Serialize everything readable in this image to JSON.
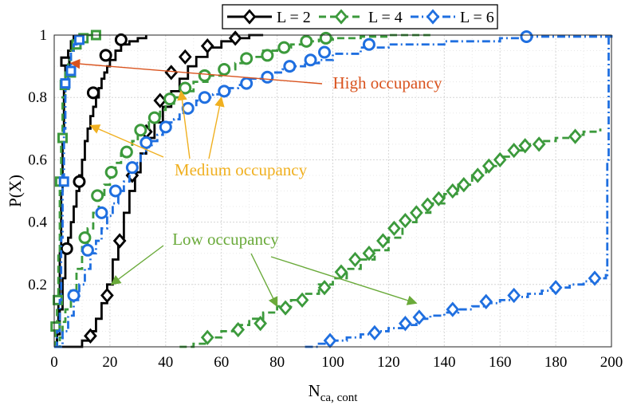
{
  "chart_data": {
    "type": "line",
    "title": "",
    "xlabel": "N",
    "xlabel_sub": "ca, cont",
    "ylabel": "P(X)",
    "xlim": [
      0,
      200
    ],
    "ylim": [
      0,
      1
    ],
    "xticks": [
      0,
      20,
      40,
      60,
      80,
      100,
      120,
      140,
      160,
      180,
      200
    ],
    "yticks": [
      0.2,
      0.4,
      0.6,
      0.8,
      1
    ],
    "ytick_labels": [
      "0.2",
      "0.4",
      "0.6",
      "0.8",
      "1"
    ],
    "grid": true,
    "legend_position": "top",
    "legend": [
      "L = 2",
      "L = 4",
      "L = 6"
    ],
    "colors": {
      "black": "#000000",
      "green": "#3c9a3c",
      "blue": "#1f6fe0",
      "high": "#d9531e",
      "medium": "#f0b020",
      "low": "#6aaa3a"
    },
    "series": [
      {
        "name": "L = 2",
        "group": "high",
        "color": "#000000",
        "dash": "",
        "marker": "square",
        "x": [
          0,
          1,
          1.5,
          2,
          2.5,
          3,
          3.5,
          4,
          5,
          6,
          7
        ],
        "y": [
          0,
          0.06,
          0.15,
          0.3,
          0.5,
          0.68,
          0.82,
          0.91,
          0.95,
          0.98,
          1.0
        ],
        "mx": [
          4
        ],
        "my": [
          0.915
        ]
      },
      {
        "name": "L = 2",
        "group": "medium",
        "color": "#000000",
        "dash": "",
        "marker": "circle",
        "x": [
          0,
          1,
          2,
          3,
          4,
          5,
          6,
          7,
          8,
          9,
          10,
          11,
          12,
          13,
          14,
          15,
          16,
          17,
          18,
          19,
          20,
          22,
          24,
          27,
          30,
          33
        ],
        "y": [
          0,
          0.04,
          0.12,
          0.22,
          0.3,
          0.35,
          0.4,
          0.45,
          0.5,
          0.55,
          0.6,
          0.66,
          0.7,
          0.74,
          0.77,
          0.8,
          0.83,
          0.86,
          0.88,
          0.9,
          0.92,
          0.95,
          0.97,
          0.98,
          0.99,
          1.0
        ],
        "mx": [
          4.5,
          9,
          14,
          18.5,
          24
        ],
        "my": [
          0.315,
          0.53,
          0.815,
          0.935,
          0.985
        ]
      },
      {
        "name": "L = 2",
        "group": "low",
        "color": "#000000",
        "dash": "",
        "marker": "diamond",
        "x": [
          0,
          5,
          10,
          13,
          15,
          17,
          19,
          21,
          23,
          25,
          27,
          29,
          31,
          33,
          36,
          39,
          42,
          45,
          48,
          51,
          55,
          60,
          65,
          70,
          75
        ],
        "y": [
          0,
          0,
          0.02,
          0.05,
          0.09,
          0.14,
          0.2,
          0.28,
          0.35,
          0.43,
          0.5,
          0.56,
          0.62,
          0.67,
          0.72,
          0.77,
          0.82,
          0.86,
          0.9,
          0.93,
          0.96,
          0.98,
          0.99,
          1.0,
          1.0
        ],
        "mx": [
          13,
          19,
          23.5,
          28,
          33,
          38,
          42,
          47,
          55,
          65
        ],
        "my": [
          0.035,
          0.165,
          0.34,
          0.55,
          0.69,
          0.79,
          0.88,
          0.93,
          0.965,
          0.99
        ]
      },
      {
        "name": "L = 4",
        "group": "high",
        "color": "#3c9a3c",
        "dash": "9,5",
        "marker": "square",
        "x": [
          0,
          0.5,
          1,
          1.5,
          2,
          2.5,
          3,
          4,
          5,
          6,
          7,
          8,
          10,
          12,
          15
        ],
        "y": [
          0,
          0.07,
          0.15,
          0.3,
          0.5,
          0.66,
          0.8,
          0.88,
          0.92,
          0.95,
          0.97,
          0.98,
          0.99,
          1.0,
          1.0
        ],
        "mx": [
          0.5,
          1.3,
          2.1,
          3,
          3.8,
          6,
          8,
          10.5,
          15
        ],
        "my": [
          0.065,
          0.15,
          0.53,
          0.67,
          0.84,
          0.88,
          0.97,
          0.99,
          1.0
        ]
      },
      {
        "name": "L = 4",
        "group": "medium",
        "color": "#3c9a3c",
        "dash": "9,5",
        "marker": "circle",
        "x": [
          0,
          2,
          3,
          4,
          6,
          8,
          10,
          12,
          14,
          16,
          18,
          20,
          22,
          24,
          26,
          28,
          30,
          32,
          34,
          36,
          38,
          40,
          43,
          46,
          50,
          55,
          60,
          65,
          70,
          75,
          80,
          85,
          90,
          95,
          100,
          110,
          120,
          130,
          135
        ],
        "y": [
          0,
          0.03,
          0.08,
          0.12,
          0.18,
          0.25,
          0.32,
          0.38,
          0.43,
          0.48,
          0.52,
          0.56,
          0.59,
          0.62,
          0.64,
          0.66,
          0.68,
          0.7,
          0.72,
          0.74,
          0.76,
          0.78,
          0.8,
          0.82,
          0.85,
          0.87,
          0.89,
          0.91,
          0.93,
          0.95,
          0.96,
          0.97,
          0.98,
          0.985,
          0.99,
          0.995,
          1.0,
          1.0,
          1.0
        ],
        "mx": [
          11,
          15.5,
          20.5,
          26,
          31,
          36,
          41.5,
          47,
          54,
          61,
          69,
          76.5,
          82.5,
          90.5,
          97.5
        ],
        "my": [
          0.35,
          0.485,
          0.56,
          0.625,
          0.695,
          0.735,
          0.795,
          0.83,
          0.87,
          0.89,
          0.925,
          0.935,
          0.96,
          0.98,
          0.99
        ]
      },
      {
        "name": "L = 4",
        "group": "low",
        "color": "#3c9a3c",
        "dash": "9,5",
        "marker": "diamond",
        "x": [
          45,
          50,
          55,
          60,
          65,
          70,
          75,
          80,
          85,
          90,
          95,
          100,
          105,
          110,
          115,
          120,
          125,
          130,
          135,
          140,
          145,
          150,
          155,
          160,
          165,
          170,
          175,
          180,
          185,
          190,
          196
        ],
        "y": [
          0,
          0.01,
          0.03,
          0.05,
          0.07,
          0.09,
          0.11,
          0.13,
          0.15,
          0.17,
          0.2,
          0.22,
          0.25,
          0.28,
          0.31,
          0.35,
          0.4,
          0.43,
          0.46,
          0.49,
          0.52,
          0.55,
          0.58,
          0.61,
          0.63,
          0.65,
          0.66,
          0.67,
          0.68,
          0.69,
          0.7
        ],
        "mx": [
          55,
          66,
          74,
          83,
          89,
          97,
          103,
          108,
          113,
          118,
          122,
          126,
          130,
          134,
          138,
          143,
          147,
          152,
          156,
          160,
          165,
          169,
          174,
          187
        ],
        "my": [
          0.03,
          0.055,
          0.075,
          0.125,
          0.15,
          0.19,
          0.24,
          0.28,
          0.3,
          0.34,
          0.38,
          0.405,
          0.43,
          0.455,
          0.475,
          0.5,
          0.52,
          0.55,
          0.58,
          0.6,
          0.63,
          0.645,
          0.65,
          0.675
        ]
      },
      {
        "name": "L = 6",
        "group": "high",
        "color": "#1f6fe0",
        "dash": "10,4,2,4",
        "marker": "square",
        "x": [
          0,
          1,
          2,
          2.5,
          3,
          3.5,
          4,
          5,
          6,
          7,
          8,
          10
        ],
        "y": [
          0,
          0.05,
          0.15,
          0.35,
          0.55,
          0.7,
          0.82,
          0.9,
          0.95,
          0.97,
          0.99,
          1.0
        ],
        "mx": [
          3.5,
          4,
          6,
          9
        ],
        "my": [
          0.53,
          0.845,
          0.885,
          0.985
        ]
      },
      {
        "name": "L = 6",
        "group": "medium",
        "color": "#1f6fe0",
        "dash": "10,4,2,4",
        "marker": "circle",
        "x": [
          0,
          3,
          5,
          7,
          9,
          11,
          13,
          15,
          17,
          19,
          21,
          23,
          25,
          27,
          29,
          31,
          33,
          35,
          37,
          39,
          41,
          43,
          45,
          48,
          51,
          54,
          57,
          60,
          63,
          66,
          70,
          74,
          78,
          82,
          86,
          90,
          95,
          100,
          110,
          120,
          140,
          160,
          170,
          200
        ],
        "y": [
          0,
          0.05,
          0.1,
          0.15,
          0.2,
          0.25,
          0.3,
          0.34,
          0.38,
          0.42,
          0.46,
          0.5,
          0.53,
          0.56,
          0.59,
          0.62,
          0.64,
          0.66,
          0.68,
          0.7,
          0.72,
          0.73,
          0.75,
          0.77,
          0.79,
          0.8,
          0.81,
          0.82,
          0.83,
          0.84,
          0.86,
          0.87,
          0.88,
          0.89,
          0.9,
          0.91,
          0.92,
          0.94,
          0.96,
          0.97,
          0.98,
          0.99,
          0.995,
          1.0
        ],
        "mx": [
          7,
          12,
          17,
          22,
          28,
          33,
          40,
          48,
          54,
          61,
          69,
          76.5,
          84.5,
          92,
          97,
          113,
          169.5
        ],
        "my": [
          0.165,
          0.31,
          0.43,
          0.5,
          0.575,
          0.655,
          0.705,
          0.765,
          0.8,
          0.82,
          0.845,
          0.865,
          0.9,
          0.92,
          0.945,
          0.97,
          0.995
        ]
      },
      {
        "name": "L = 6",
        "group": "low",
        "color": "#1f6fe0",
        "dash": "10,4,2,4",
        "marker": "diamond",
        "x": [
          90,
          95,
          100,
          105,
          110,
          115,
          120,
          125,
          130,
          135,
          140,
          145,
          150,
          155,
          160,
          165,
          170,
          175,
          180,
          185,
          190,
          195,
          198,
          198.5,
          199
        ],
        "y": [
          0,
          0.01,
          0.02,
          0.03,
          0.04,
          0.05,
          0.06,
          0.07,
          0.09,
          0.1,
          0.11,
          0.12,
          0.13,
          0.14,
          0.15,
          0.16,
          0.17,
          0.18,
          0.19,
          0.2,
          0.21,
          0.22,
          0.23,
          0.6,
          1.0
        ],
        "mx": [
          99,
          115,
          126,
          131,
          143,
          155,
          165,
          180,
          194
        ],
        "my": [
          0.02,
          0.045,
          0.075,
          0.095,
          0.12,
          0.145,
          0.165,
          0.19,
          0.22
        ]
      }
    ],
    "annotations": [
      {
        "text": "High occupancy",
        "color": "#d9531e",
        "group": "high",
        "targets": [
          [
            6,
            0.91
          ]
        ]
      },
      {
        "text": "Medium occupancy",
        "color": "#f0b020",
        "group": "medium",
        "targets": [
          [
            13,
            0.71
          ],
          [
            45.5,
            0.82
          ],
          [
            60,
            0.8
          ]
        ]
      },
      {
        "text": "Low occupancy",
        "color": "#6aaa3a",
        "group": "low",
        "targets": [
          [
            20.5,
            0.2
          ],
          [
            80,
            0.13
          ],
          [
            130,
            0.14
          ]
        ]
      }
    ]
  }
}
